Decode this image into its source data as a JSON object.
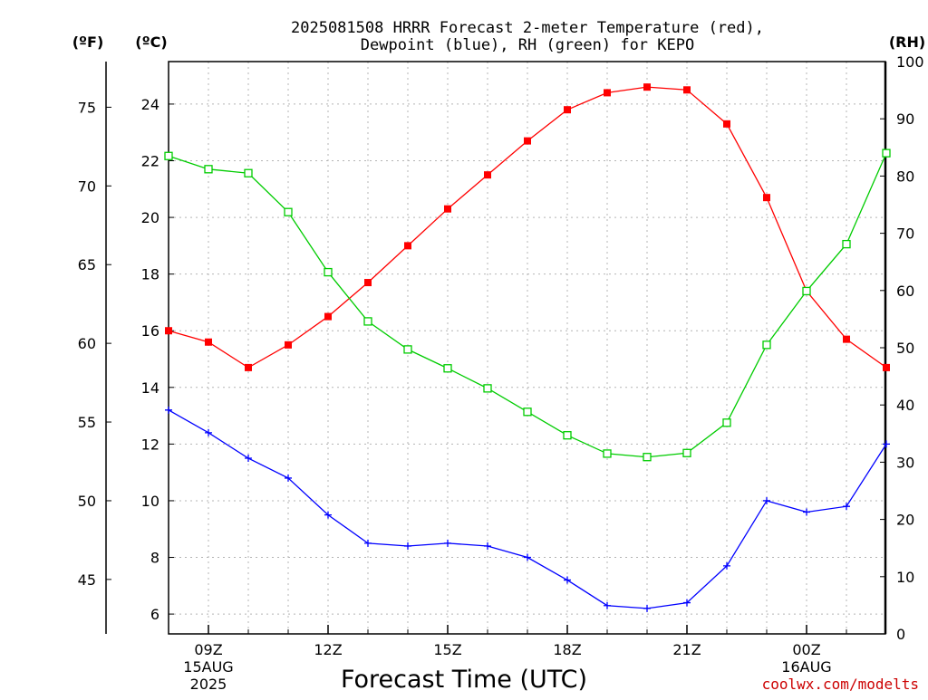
{
  "chart_data": {
    "type": "line",
    "title_line1": "2025081508 HRRR Forecast 2-meter Temperature (red),",
    "title_line2": "Dewpoint (blue), RH (green) for KEPO",
    "xlabel": "Forecast Time (UTC)",
    "credit": "coolwx.com/modelts",
    "unit_labels": {
      "fahrenheit": "(ºF)",
      "celsius": "(ºC)",
      "rh": "(RH)"
    },
    "x": [
      "08Z",
      "09Z",
      "10Z",
      "11Z",
      "12Z",
      "13Z",
      "14Z",
      "15Z",
      "16Z",
      "17Z",
      "18Z",
      "19Z",
      "20Z",
      "21Z",
      "22Z",
      "23Z",
      "00Z",
      "01Z",
      "02Z"
    ],
    "x_tick_labels": [
      {
        "label": "09Z",
        "date": "15AUG",
        "year": "2025"
      },
      {
        "label": "12Z",
        "date": "",
        "year": ""
      },
      {
        "label": "15Z",
        "date": "",
        "year": ""
      },
      {
        "label": "18Z",
        "date": "",
        "year": ""
      },
      {
        "label": "21Z",
        "date": "",
        "year": ""
      },
      {
        "label": "00Z",
        "date": "16AUG",
        "year": ""
      }
    ],
    "ylim_celsius": [
      5.3,
      25.5
    ],
    "ylim_rh": [
      0,
      100
    ],
    "celsius_ticks": [
      "6",
      "8",
      "10",
      "12",
      "14",
      "16",
      "18",
      "20",
      "22",
      "24"
    ],
    "fahrenheit_ticks": [
      "45",
      "50",
      "55",
      "60",
      "65",
      "70",
      "75"
    ],
    "rh_ticks": [
      "0",
      "10",
      "20",
      "30",
      "40",
      "50",
      "60",
      "70",
      "80",
      "90",
      "100"
    ],
    "grid": true,
    "series": [
      {
        "name": "Temperature (red)",
        "axis": "celsius",
        "color": "#ff0000",
        "marker": "filled-square",
        "values": [
          16.0,
          15.6,
          14.7,
          15.5,
          16.5,
          17.7,
          19.0,
          20.3,
          21.5,
          22.7,
          23.8,
          24.4,
          24.6,
          24.5,
          23.3,
          20.7,
          17.4,
          15.7,
          14.7
        ]
      },
      {
        "name": "Dewpoint (blue)",
        "axis": "celsius",
        "color": "#0000ff",
        "marker": "plus",
        "values": [
          13.2,
          12.4,
          11.5,
          10.8,
          9.5,
          8.5,
          8.4,
          8.5,
          8.4,
          8.0,
          7.2,
          6.3,
          6.2,
          6.4,
          7.7,
          10.0,
          9.6,
          9.8,
          12.0
        ]
      },
      {
        "name": "RH (green)",
        "axis": "rh",
        "color": "#00cc00",
        "marker": "open-square",
        "values": [
          83.5,
          81.2,
          80.5,
          73.7,
          63.2,
          54.6,
          49.7,
          46.4,
          42.9,
          38.8,
          34.7,
          31.5,
          30.9,
          31.6,
          36.9,
          50.5,
          59.9,
          68.1,
          84.0
        ]
      }
    ]
  }
}
